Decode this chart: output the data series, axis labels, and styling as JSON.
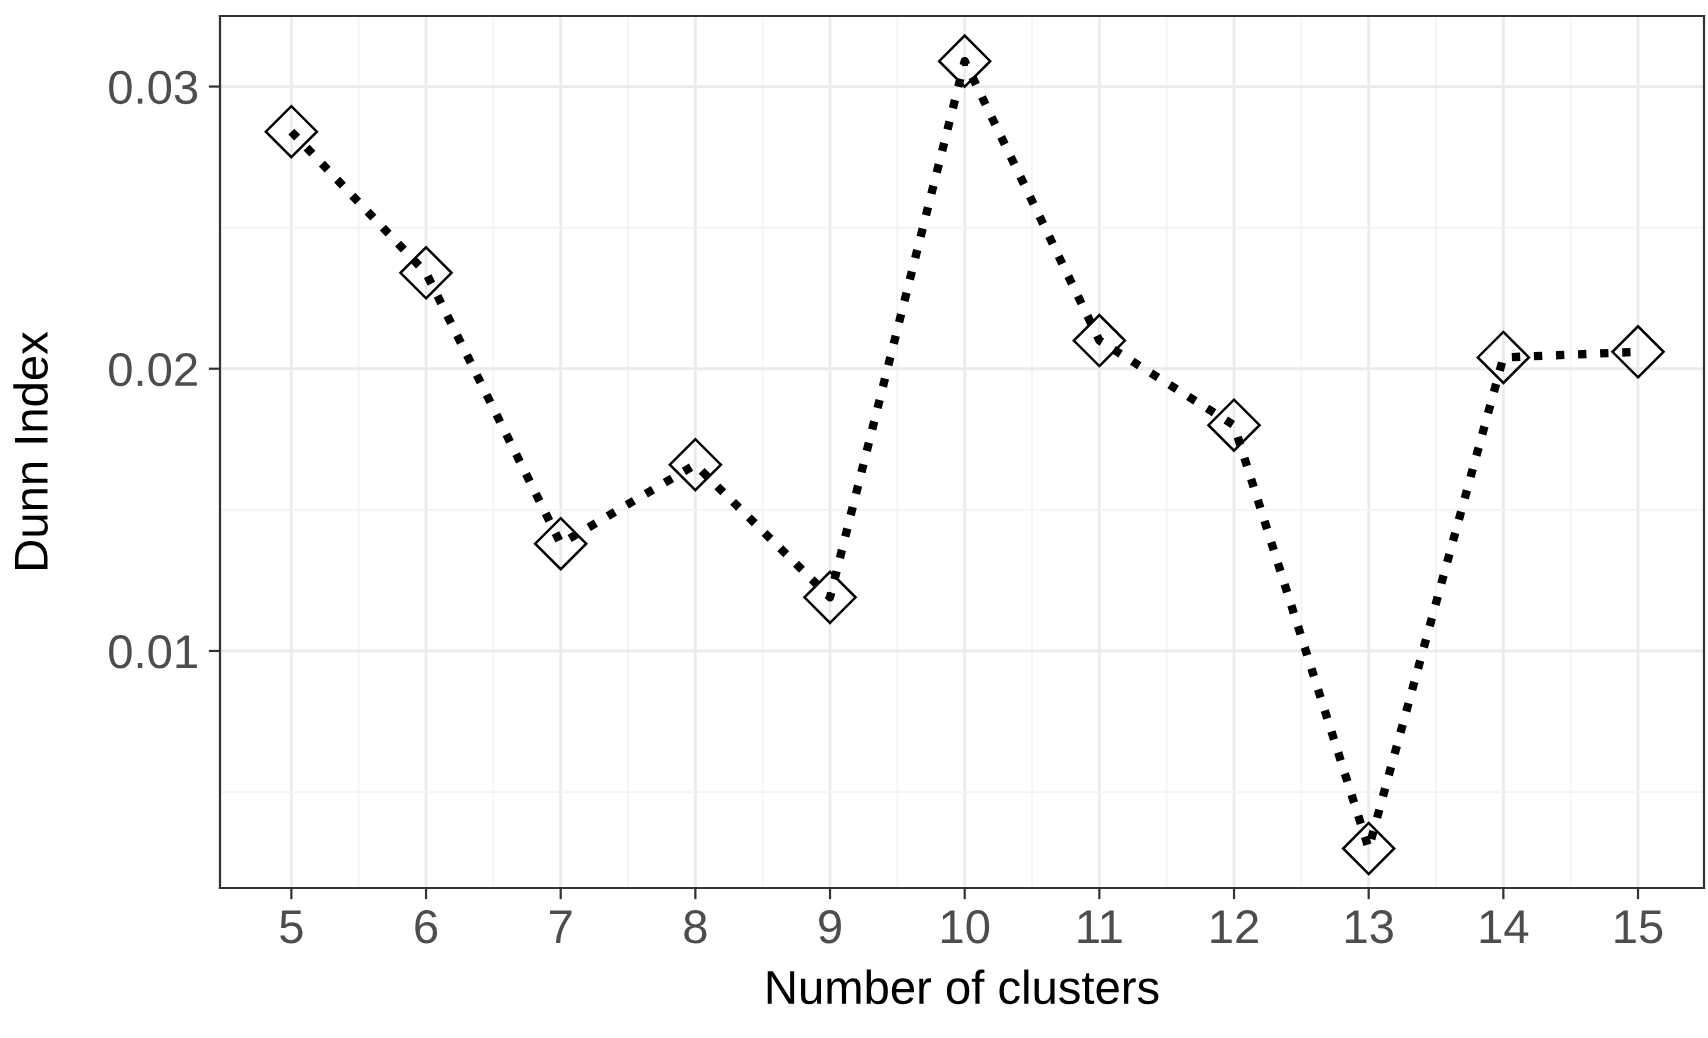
{
  "chart_data": {
    "type": "line",
    "xlabel": "Number of clusters",
    "ylabel": "Dunn Index",
    "x": [
      5,
      6,
      7,
      8,
      9,
      10,
      11,
      12,
      13,
      14,
      15
    ],
    "series": [
      {
        "color": "#000000",
        "values": [
          0.0284,
          0.0234,
          0.0138,
          0.0166,
          0.0119,
          0.0309,
          0.021,
          0.018,
          0.003,
          0.0204,
          0.0206
        ]
      }
    ],
    "xlim": [
      4.47,
      15.49
    ],
    "ylim": [
      0.0016,
      0.0325
    ],
    "xticks": [
      5,
      6,
      7,
      8,
      9,
      10,
      11,
      12,
      13,
      14,
      15
    ],
    "yticks": [
      0.01,
      0.02,
      0.03
    ],
    "grid": true,
    "marker": "diamond",
    "line_style": "dotted",
    "legend": false
  }
}
